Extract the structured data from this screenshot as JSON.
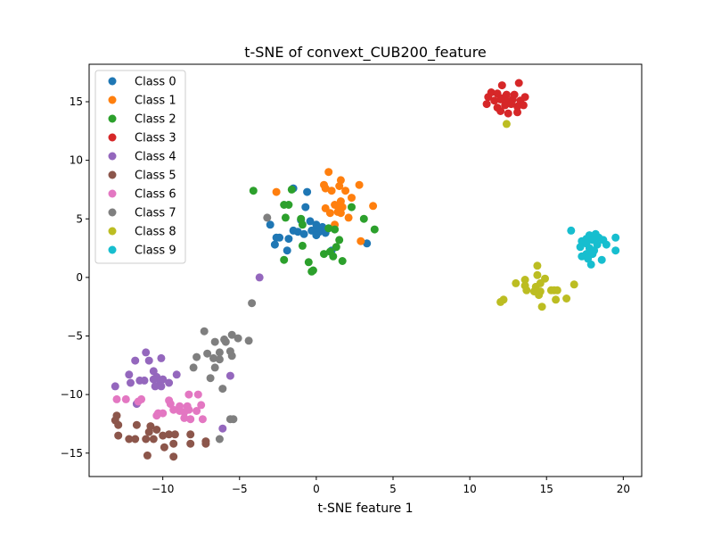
{
  "chart_data": {
    "type": "scatter",
    "title": "t-SNE of convext_CUB200_feature",
    "xlabel": "t-SNE feature 1",
    "ylabel": "",
    "xlim": [
      -14.8,
      21.2
    ],
    "ylim": [
      -17.0,
      18.2
    ],
    "xticks": [
      -10,
      -5,
      0,
      5,
      10,
      15,
      20
    ],
    "yticks": [
      -15,
      -10,
      -5,
      0,
      5,
      10,
      15
    ],
    "grid": false,
    "legend_position": "top-left",
    "series": [
      {
        "name": "Class 0",
        "color": "#1f77b4",
        "points": [
          [
            -1.5,
            7.6
          ],
          [
            -0.6,
            7.3
          ],
          [
            -0.7,
            6.0
          ],
          [
            -1.0,
            4.9
          ],
          [
            -0.4,
            4.8
          ],
          [
            0.0,
            4.5
          ],
          [
            0.4,
            4.3
          ],
          [
            0.0,
            4.1
          ],
          [
            -0.3,
            4.0
          ],
          [
            0.2,
            3.9
          ],
          [
            0.6,
            3.8
          ],
          [
            0.0,
            3.6
          ],
          [
            -1.5,
            4.0
          ],
          [
            -1.2,
            3.9
          ],
          [
            -0.8,
            3.7
          ],
          [
            -1.8,
            3.3
          ],
          [
            -2.4,
            3.4
          ],
          [
            -2.6,
            3.4
          ],
          [
            -3.0,
            4.5
          ],
          [
            -2.7,
            2.8
          ],
          [
            -1.9,
            2.3
          ],
          [
            1.0,
            2.3
          ],
          [
            3.3,
            2.9
          ]
        ]
      },
      {
        "name": "Class 1",
        "color": "#ff7f0e",
        "points": [
          [
            0.8,
            9.0
          ],
          [
            0.5,
            7.9
          ],
          [
            0.6,
            7.6
          ],
          [
            1.0,
            7.4
          ],
          [
            1.5,
            7.8
          ],
          [
            1.6,
            8.3
          ],
          [
            1.9,
            7.4
          ],
          [
            2.3,
            6.8
          ],
          [
            2.8,
            7.9
          ],
          [
            -2.6,
            7.3
          ],
          [
            1.2,
            6.2
          ],
          [
            1.4,
            6.1
          ],
          [
            1.6,
            6.5
          ],
          [
            1.7,
            6.0
          ],
          [
            0.6,
            5.9
          ],
          [
            0.9,
            5.5
          ],
          [
            1.4,
            5.6
          ],
          [
            1.6,
            5.5
          ],
          [
            2.1,
            5.1
          ],
          [
            3.7,
            6.1
          ],
          [
            2.9,
            3.1
          ],
          [
            1.2,
            4.5
          ]
        ]
      },
      {
        "name": "Class 2",
        "color": "#2ca02c",
        "points": [
          [
            -4.1,
            7.4
          ],
          [
            -1.6,
            7.5
          ],
          [
            -2.1,
            6.2
          ],
          [
            -1.8,
            6.2
          ],
          [
            2.3,
            6.0
          ],
          [
            -2.0,
            5.1
          ],
          [
            -1.0,
            5.0
          ],
          [
            -0.9,
            4.5
          ],
          [
            0.8,
            4.2
          ],
          [
            1.2,
            4.1
          ],
          [
            3.1,
            5.0
          ],
          [
            3.8,
            4.1
          ],
          [
            1.5,
            3.2
          ],
          [
            -0.9,
            2.7
          ],
          [
            0.9,
            2.2
          ],
          [
            0.5,
            2.0
          ],
          [
            1.3,
            2.6
          ],
          [
            1.1,
            1.8
          ],
          [
            1.7,
            1.4
          ],
          [
            -2.1,
            1.5
          ],
          [
            -0.5,
            1.3
          ],
          [
            -0.3,
            0.5
          ],
          [
            -0.2,
            0.6
          ]
        ]
      },
      {
        "name": "Class 3",
        "color": "#d62728",
        "points": [
          [
            12.1,
            16.4
          ],
          [
            13.2,
            16.6
          ],
          [
            11.4,
            15.8
          ],
          [
            11.8,
            15.7
          ],
          [
            12.4,
            15.6
          ],
          [
            12.9,
            15.6
          ],
          [
            12.1,
            15.3
          ],
          [
            11.2,
            15.4
          ],
          [
            11.6,
            15.1
          ],
          [
            12.0,
            15.2
          ],
          [
            12.5,
            15.0
          ],
          [
            12.8,
            15.2
          ],
          [
            13.3,
            15.1
          ],
          [
            13.6,
            15.4
          ],
          [
            11.1,
            14.8
          ],
          [
            11.8,
            14.5
          ],
          [
            12.3,
            14.7
          ],
          [
            12.7,
            14.8
          ],
          [
            13.1,
            14.6
          ],
          [
            13.5,
            14.7
          ],
          [
            12.0,
            14.2
          ],
          [
            12.5,
            14.0
          ],
          [
            13.1,
            14.1
          ]
        ]
      },
      {
        "name": "Class 4",
        "color": "#9467bd",
        "points": [
          [
            -3.7,
            0.0
          ],
          [
            -11.1,
            -6.4
          ],
          [
            -11.8,
            -7.1
          ],
          [
            -10.9,
            -7.1
          ],
          [
            -10.1,
            -6.9
          ],
          [
            -10.6,
            -8.0
          ],
          [
            -12.2,
            -8.3
          ],
          [
            -10.4,
            -8.5
          ],
          [
            -10.2,
            -8.8
          ],
          [
            -10.6,
            -8.7
          ],
          [
            -11.5,
            -8.8
          ],
          [
            -11.2,
            -8.8
          ],
          [
            -10.0,
            -8.7
          ],
          [
            -9.1,
            -8.3
          ],
          [
            -12.1,
            -9.0
          ],
          [
            -9.6,
            -9.0
          ],
          [
            -10.5,
            -9.3
          ],
          [
            -10.1,
            -9.3
          ],
          [
            -13.1,
            -9.3
          ],
          [
            -11.7,
            -10.8
          ],
          [
            -6.1,
            -12.9
          ],
          [
            -5.6,
            -8.4
          ]
        ]
      },
      {
        "name": "Class 5",
        "color": "#8c564b",
        "points": [
          [
            -13.0,
            -11.8
          ],
          [
            -13.1,
            -12.2
          ],
          [
            -12.9,
            -12.6
          ],
          [
            -11.7,
            -12.6
          ],
          [
            -10.8,
            -12.7
          ],
          [
            -10.4,
            -13.0
          ],
          [
            -10.9,
            -13.2
          ],
          [
            -10.0,
            -13.5
          ],
          [
            -9.6,
            -13.4
          ],
          [
            -9.2,
            -13.4
          ],
          [
            -8.2,
            -13.4
          ],
          [
            -12.9,
            -13.5
          ],
          [
            -12.2,
            -13.8
          ],
          [
            -11.8,
            -13.8
          ],
          [
            -11.1,
            -13.8
          ],
          [
            -10.6,
            -13.8
          ],
          [
            -9.3,
            -14.2
          ],
          [
            -8.2,
            -14.2
          ],
          [
            -7.2,
            -14.0
          ],
          [
            -7.2,
            -14.2
          ],
          [
            -9.9,
            -14.5
          ],
          [
            -11.0,
            -15.2
          ],
          [
            -9.3,
            -15.3
          ]
        ]
      },
      {
        "name": "Class 6",
        "color": "#e377c2",
        "points": [
          [
            -9.6,
            -10.5
          ],
          [
            -8.3,
            -10.0
          ],
          [
            -7.7,
            -10.0
          ],
          [
            -13.0,
            -10.4
          ],
          [
            -12.4,
            -10.4
          ],
          [
            -11.6,
            -10.6
          ],
          [
            -11.4,
            -10.4
          ],
          [
            -9.5,
            -10.8
          ],
          [
            -8.9,
            -11.0
          ],
          [
            -8.4,
            -11.0
          ],
          [
            -8.3,
            -11.3
          ],
          [
            -7.5,
            -10.9
          ],
          [
            -8.9,
            -11.4
          ],
          [
            -9.3,
            -11.3
          ],
          [
            -10.0,
            -11.6
          ],
          [
            -10.4,
            -11.8
          ],
          [
            -10.3,
            -11.6
          ],
          [
            -8.6,
            -11.5
          ],
          [
            -7.8,
            -11.4
          ],
          [
            -8.6,
            -12.0
          ],
          [
            -8.2,
            -12.1
          ],
          [
            -7.4,
            -12.1
          ]
        ]
      },
      {
        "name": "Class 7",
        "color": "#7f7f7f",
        "points": [
          [
            -3.2,
            5.1
          ],
          [
            -4.2,
            -2.2
          ],
          [
            -7.3,
            -4.6
          ],
          [
            -6.6,
            -5.5
          ],
          [
            -6.0,
            -5.3
          ],
          [
            -5.9,
            -5.5
          ],
          [
            -5.5,
            -4.9
          ],
          [
            -5.1,
            -5.2
          ],
          [
            -4.4,
            -5.4
          ],
          [
            -7.1,
            -6.5
          ],
          [
            -6.3,
            -6.4
          ],
          [
            -5.6,
            -6.3
          ],
          [
            -5.5,
            -6.7
          ],
          [
            -7.8,
            -6.8
          ],
          [
            -6.7,
            -6.9
          ],
          [
            -6.3,
            -7.0
          ],
          [
            -8.0,
            -7.7
          ],
          [
            -6.6,
            -7.7
          ],
          [
            -6.9,
            -8.6
          ],
          [
            -6.1,
            -9.5
          ],
          [
            -5.6,
            -12.1
          ],
          [
            -5.4,
            -12.1
          ],
          [
            -6.3,
            -13.8
          ]
        ]
      },
      {
        "name": "Class 8",
        "color": "#bcbd22",
        "points": [
          [
            12.4,
            13.1
          ],
          [
            14.4,
            1.0
          ],
          [
            14.4,
            0.2
          ],
          [
            13.6,
            -0.2
          ],
          [
            14.9,
            -0.1
          ],
          [
            13.0,
            -0.5
          ],
          [
            13.6,
            -0.7
          ],
          [
            14.3,
            -0.8
          ],
          [
            14.6,
            -0.5
          ],
          [
            16.8,
            -0.6
          ],
          [
            13.7,
            -1.1
          ],
          [
            14.2,
            -1.2
          ],
          [
            14.6,
            -1.2
          ],
          [
            15.3,
            -1.1
          ],
          [
            15.7,
            -1.1
          ],
          [
            15.5,
            -1.1
          ],
          [
            14.5,
            -1.5
          ],
          [
            16.3,
            -1.8
          ],
          [
            15.6,
            -1.9
          ],
          [
            12.2,
            -1.9
          ],
          [
            12.0,
            -2.1
          ],
          [
            14.7,
            -2.5
          ]
        ]
      },
      {
        "name": "Class 9",
        "color": "#17becf",
        "points": [
          [
            16.6,
            4.0
          ],
          [
            17.8,
            3.6
          ],
          [
            18.2,
            3.7
          ],
          [
            18.4,
            3.4
          ],
          [
            19.5,
            3.4
          ],
          [
            17.3,
            3.1
          ],
          [
            17.6,
            3.3
          ],
          [
            18.0,
            3.2
          ],
          [
            18.7,
            3.2
          ],
          [
            17.6,
            2.9
          ],
          [
            18.3,
            2.8
          ],
          [
            18.9,
            2.8
          ],
          [
            17.2,
            2.6
          ],
          [
            17.8,
            2.5
          ],
          [
            18.1,
            2.3
          ],
          [
            19.5,
            2.3
          ],
          [
            17.6,
            2.0
          ],
          [
            18.0,
            2.0
          ],
          [
            17.3,
            1.8
          ],
          [
            17.7,
            1.6
          ],
          [
            18.6,
            1.5
          ],
          [
            17.9,
            1.1
          ]
        ]
      }
    ]
  }
}
